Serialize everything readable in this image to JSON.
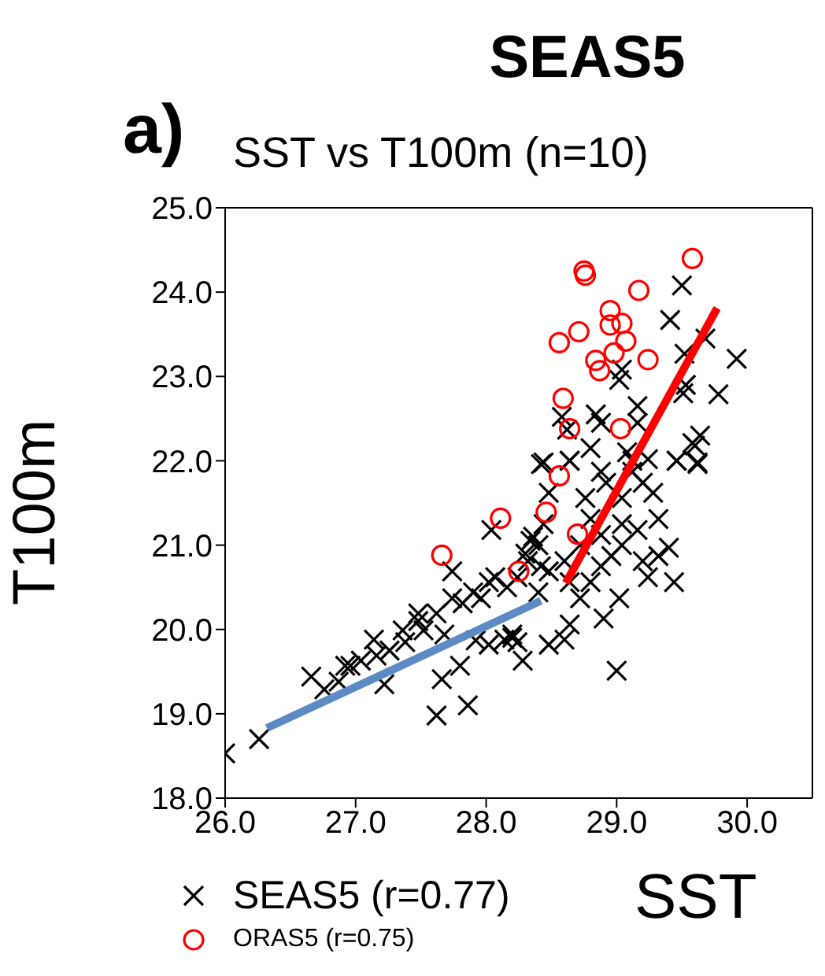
{
  "chart_data": {
    "type": "scatter",
    "title": "SEAS5",
    "subtitle": "SST vs T100m (n=10)",
    "annotations": [
      "a)"
    ],
    "xlabel": "SST",
    "ylabel": "T100m",
    "xlim": [
      26,
      30.5
    ],
    "ylim": [
      18,
      25
    ],
    "xticks": [
      {
        "value": 26,
        "label": "26.0"
      },
      {
        "value": 27,
        "label": "27.0"
      },
      {
        "value": 28,
        "label": "28.0"
      },
      {
        "value": 29,
        "label": "29.0"
      },
      {
        "value": 30,
        "label": "30.0"
      }
    ],
    "yticks": [
      {
        "value": 18,
        "label": "18.0"
      },
      {
        "value": 19,
        "label": "19.0"
      },
      {
        "value": 20,
        "label": "20.0"
      },
      {
        "value": 21,
        "label": "21.0"
      },
      {
        "value": 22,
        "label": "22.0"
      },
      {
        "value": 23,
        "label": "23.0"
      },
      {
        "value": 24,
        "label": "24.0"
      },
      {
        "value": 25,
        "label": "25.0"
      }
    ],
    "grid": false,
    "legend": "bottom left",
    "series": [
      {
        "name": "SEAS5 (r=0.77)",
        "marker": "cross",
        "color": "#000000",
        "x": [
          29.5,
          29.41,
          29.68,
          29.52,
          29.92,
          29.04,
          29.02,
          29.53,
          29.78,
          29.51,
          29.16,
          28.58,
          28.84,
          28.88,
          29.16,
          28.62,
          29.64,
          29.58,
          28.8,
          28.44,
          28.64,
          29.46,
          29.62,
          29.12,
          29.24,
          26.0,
          26.26,
          26.66,
          26.76,
          26.87,
          26.96,
          27.04,
          27.14,
          27.22,
          27.26,
          27.38,
          27.48,
          27.52,
          27.62,
          27.62,
          27.68,
          27.66,
          27.8,
          27.86,
          27.74,
          27.82,
          27.96,
          27.92,
          28.04,
          28.02,
          28.02,
          28.14,
          28.2,
          28.24,
          28.28,
          28.16,
          28.32,
          28.4,
          28.44,
          28.42,
          28.48,
          28.48,
          28.4,
          28.48,
          28.6,
          28.64,
          28.64,
          28.76,
          28.8,
          28.72,
          28.8,
          28.88,
          28.9,
          28.92,
          29.02,
          29.0,
          29.08,
          29.04,
          29.04,
          29.12,
          29.16,
          29.2,
          29.28,
          29.32,
          29.32,
          29.4,
          29.44,
          29.46,
          29.6,
          29.62,
          28.3,
          28.36,
          28.42,
          28.34,
          28.2,
          28.24,
          28.07,
          27.9,
          27.74,
          27.48,
          27.36,
          26.92,
          27.16,
          28.88,
          29.2,
          29.04,
          28.88,
          28.72,
          28.6,
          28.64,
          29.24,
          28.96
        ],
        "values": [
          24.08,
          23.67,
          23.45,
          23.27,
          23.21,
          23.08,
          22.96,
          22.9,
          22.79,
          22.8,
          22.65,
          22.52,
          22.55,
          22.45,
          22.45,
          22.37,
          22.3,
          22.21,
          22.15,
          21.98,
          22.0,
          22.0,
          21.98,
          22.0,
          22.02,
          18.53,
          18.7,
          19.44,
          19.29,
          19.38,
          19.57,
          19.63,
          19.88,
          19.35,
          19.75,
          19.85,
          20.1,
          19.99,
          20.19,
          18.98,
          19.94,
          19.41,
          19.57,
          19.1,
          20.69,
          20.31,
          20.37,
          19.87,
          21.18,
          20.56,
          19.82,
          19.88,
          19.94,
          19.85,
          19.63,
          20.5,
          20.81,
          21.0,
          21.25,
          21.96,
          21.62,
          20.69,
          20.44,
          19.82,
          19.88,
          20.06,
          22.0,
          21.56,
          21.31,
          20.37,
          20.56,
          20.75,
          20.13,
          21.74,
          20.37,
          19.51,
          22.1,
          21.56,
          21.0,
          21.87,
          21.18,
          20.81,
          21.62,
          21.31,
          20.87,
          20.97,
          20.56,
          22.0,
          22.18,
          21.96,
          20.9,
          21.1,
          20.75,
          21.05,
          19.9,
          20.62,
          20.62,
          20.44,
          20.37,
          20.19,
          19.99,
          19.57,
          19.69,
          21.87,
          21.74,
          21.25,
          21.12,
          21.0,
          20.81,
          20.56,
          20.62,
          20.87
        ]
      },
      {
        "name": "ORAS5 (r=0.75)",
        "marker": "circle",
        "color": "#ff0000",
        "x": [
          29.58,
          28.75,
          28.76,
          29.17,
          28.95,
          28.71,
          28.56,
          28.95,
          29.04,
          29.07,
          28.98,
          28.84,
          28.87,
          29.24,
          28.59,
          29.03,
          28.64,
          28.56,
          28.11,
          28.46,
          28.7,
          27.66,
          28.25
        ],
        "values": [
          24.4,
          24.25,
          24.2,
          24.02,
          23.78,
          23.53,
          23.4,
          23.61,
          23.63,
          23.42,
          23.28,
          23.19,
          23.07,
          23.2,
          22.74,
          22.38,
          22.38,
          21.82,
          21.32,
          21.39,
          21.13,
          20.88,
          20.69
        ]
      },
      {
        "type": "line",
        "color": "#5b8ac4",
        "marker": "none",
        "line_style": "solid",
        "x": [
          26.32,
          28.42
        ],
        "values": [
          18.83,
          20.34
        ]
      },
      {
        "type": "line",
        "color": "#ff0000",
        "marker": "none",
        "line_style": "solid",
        "x": [
          28.61,
          29.77
        ],
        "values": [
          20.55,
          23.81
        ]
      }
    ]
  }
}
